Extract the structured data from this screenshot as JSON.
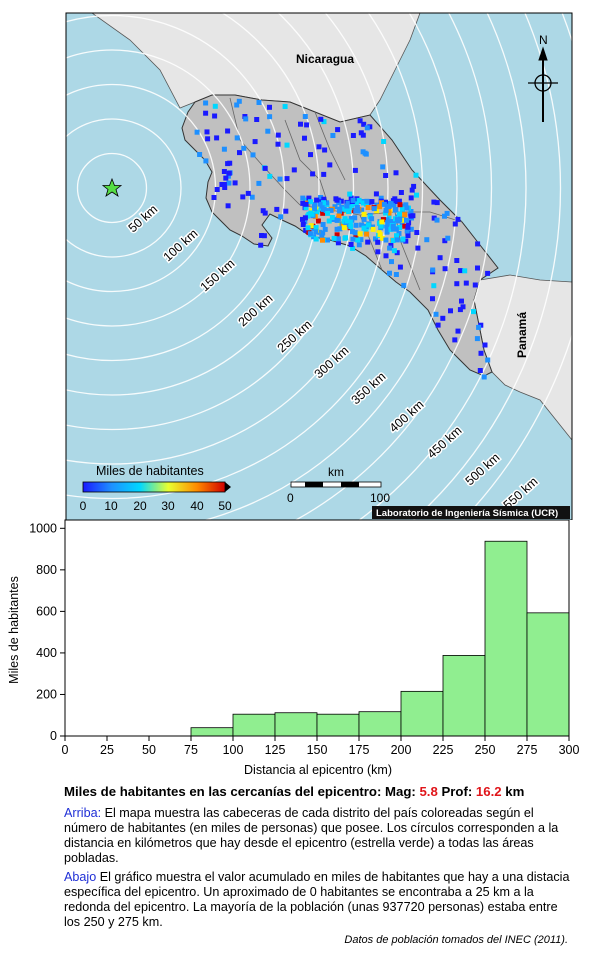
{
  "map": {
    "labels": {
      "nicaragua": "Nicaragua",
      "panama": "Panamá",
      "north": "N",
      "km": "km",
      "scale_min": "0",
      "scale_max": "100",
      "colorbar_title": "Miles de habitantes",
      "credit": "Laboratorio de Ingeniería Sísmica (UCR)"
    },
    "distance_rings": [
      "50 km",
      "100 km",
      "150 km",
      "200 km",
      "250 km",
      "300 km",
      "350 km",
      "400 km",
      "450 km",
      "500 km",
      "550 km"
    ],
    "colorbar_ticks": [
      "0",
      "10",
      "20",
      "30",
      "40",
      "50"
    ],
    "colors": {
      "sea": "#add8e6",
      "land": "#c0c0c0",
      "neighbor_land": "#e6e6e6",
      "epicenter": "#55dd44"
    },
    "colormap": [
      "#1a1aff",
      "#1e90ff",
      "#00d7ff",
      "#fff000",
      "#ff8c00",
      "#d00000"
    ]
  },
  "chart_data": {
    "type": "bar",
    "categories": [
      "0-25",
      "25-50",
      "50-75",
      "75-100",
      "100-125",
      "125-150",
      "150-175",
      "175-200",
      "200-225",
      "225-250",
      "250-275",
      "275-300"
    ],
    "bin_edges": [
      0,
      25,
      50,
      75,
      100,
      125,
      150,
      175,
      200,
      225,
      250,
      275,
      300
    ],
    "values": [
      0,
      0,
      0,
      40,
      105,
      112,
      105,
      117,
      215,
      388,
      937.72,
      593
    ],
    "xlabel": "Distancia al epicentro (km)",
    "ylabel": "Miles de habitantes",
    "xticks": [
      "0",
      "25",
      "50",
      "75",
      "100",
      "125",
      "150",
      "175",
      "200",
      "225",
      "250",
      "275",
      "300"
    ],
    "yticks": [
      "0",
      "200",
      "400",
      "600",
      "800",
      "1000"
    ],
    "xlim": [
      0,
      300
    ],
    "ylim": [
      0,
      1040
    ],
    "bar_color": "#90ee90",
    "grid": false
  },
  "captions": {
    "title_prefix": "Miles de habitantes en las cercanías del epicentro: Mag:",
    "mag": "5.8",
    "depth_label": "Prof:",
    "depth": "16.2",
    "depth_unit": "km",
    "arriba_word": "Arriba:",
    "arriba_text": "El mapa muestra las cabeceras de cada distrito del país coloreadas según el número de habitantes (en miles de personas) que posee.  Los círculos corresponden a la distancia en kilómetros que hay desde el epicentro (estrella verde) a todas las áreas pobladas.",
    "abajo_word": "Abajo",
    "abajo_text": "El gráfico muestra el valor acumulado en miles de habitantes que hay a una distacia específica del epicentro.  Un aproximado de 0 habitantes se encontraba a 25 km a la redonda del epicentro.  La mayoría de la población (unas 937720 personas) estaba entre los 250 y 275 km.",
    "source": "Datos de población tomados del INEC (2011)."
  }
}
